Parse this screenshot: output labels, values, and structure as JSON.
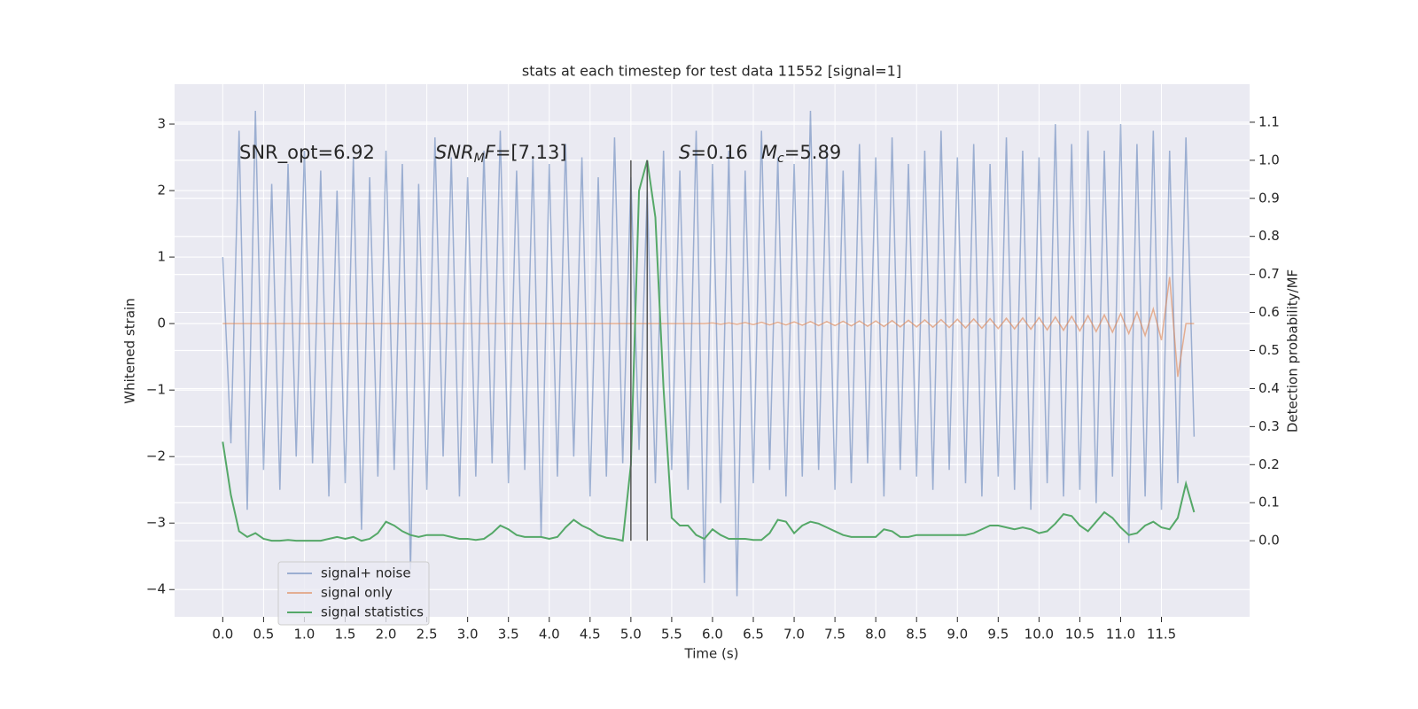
{
  "chart_data": {
    "type": "line",
    "title": "stats at each timestep for test data 11552 [signal=1]",
    "xlabel": "Time (s)",
    "ylabel": "Whitened strain",
    "y2label": "Detection probability/MF",
    "annotations": {
      "snr_opt": "SNR_opt=6.92",
      "snr_mf": [
        "SNR",
        "M",
        "F",
        "=[7.13]"
      ],
      "s": [
        "S",
        "=0.16"
      ],
      "mc": [
        "M",
        "c",
        "=5.89"
      ]
    },
    "x": [
      0,
      0.1,
      0.2,
      0.3,
      0.4,
      0.5,
      0.6,
      0.7,
      0.8,
      0.9,
      1,
      1.1,
      1.2,
      1.3,
      1.4,
      1.5,
      1.6,
      1.7,
      1.8,
      1.9,
      2,
      2.1,
      2.2,
      2.3,
      2.4,
      2.5,
      2.6,
      2.7,
      2.8,
      2.9,
      3,
      3.1,
      3.2,
      3.3,
      3.4,
      3.5,
      3.6,
      3.7,
      3.8,
      3.9,
      4,
      4.1,
      4.2,
      4.3,
      4.4,
      4.5,
      4.6,
      4.7,
      4.8,
      4.9,
      5,
      5.1,
      5.2,
      5.3,
      5.4,
      5.5,
      5.6,
      5.7,
      5.8,
      5.9,
      6,
      6.1,
      6.2,
      6.3,
      6.4,
      6.5,
      6.6,
      6.7,
      6.8,
      6.9,
      7,
      7.1,
      7.2,
      7.3,
      7.4,
      7.5,
      7.6,
      7.7,
      7.8,
      7.9,
      8,
      8.1,
      8.2,
      8.3,
      8.4,
      8.5,
      8.6,
      8.7,
      8.8,
      8.9,
      9,
      9.1,
      9.2,
      9.3,
      9.4,
      9.5,
      9.6,
      9.7,
      9.8,
      9.9,
      10,
      10.1,
      10.2,
      10.3,
      10.4,
      10.5,
      10.6,
      10.7,
      10.8,
      10.9,
      11,
      11.1,
      11.2,
      11.3,
      11.4,
      11.5,
      11.6,
      11.7,
      11.8,
      11.9
    ],
    "series": [
      {
        "name": "signal+ noise",
        "color": "#4c72b0",
        "opacity": 0.5,
        "values": [
          1.0,
          -1.8,
          2.9,
          -2.8,
          3.2,
          -2.2,
          2.1,
          -2.5,
          2.4,
          -2.0,
          2.6,
          -2.1,
          2.3,
          -2.6,
          2.0,
          -2.4,
          2.5,
          -3.1,
          2.2,
          -2.3,
          2.6,
          -2.2,
          2.4,
          -3.7,
          2.1,
          -2.5,
          2.8,
          -2.0,
          2.5,
          -2.6,
          2.2,
          -2.3,
          2.6,
          -2.1,
          2.9,
          -2.4,
          2.3,
          -2.2,
          2.5,
          -3.2,
          2.4,
          -2.3,
          2.7,
          -2.0,
          2.5,
          -2.6,
          2.2,
          -2.3,
          2.8,
          -2.1,
          2.2,
          -1.9,
          2.0,
          -2.4,
          2.6,
          -2.2,
          2.3,
          -2.5,
          2.9,
          -3.9,
          2.4,
          -2.7,
          2.6,
          -4.1,
          2.3,
          -2.4,
          2.9,
          -2.2,
          2.5,
          -2.6,
          2.4,
          -2.3,
          3.2,
          -2.2,
          2.6,
          -2.5,
          2.3,
          -2.4,
          2.7,
          -2.1,
          2.5,
          -2.6,
          2.8,
          -2.2,
          2.4,
          -2.3,
          2.6,
          -2.5,
          2.9,
          -2.2,
          2.5,
          -2.4,
          2.7,
          -2.6,
          2.4,
          -2.3,
          2.8,
          -2.5,
          2.6,
          -2.8,
          2.5,
          -2.4,
          3.0,
          -2.6,
          2.7,
          -2.5,
          2.9,
          -2.7,
          2.6,
          -2.3,
          3.0,
          -3.3,
          2.7,
          -2.6,
          2.9,
          -2.8,
          2.6,
          -2.4,
          2.8,
          -1.7
        ]
      },
      {
        "name": "signal only",
        "color": "#dd8452",
        "opacity": 0.6,
        "values": [
          0,
          0,
          0,
          0,
          0,
          0,
          0,
          0,
          0,
          0,
          0,
          0,
          0,
          0,
          0,
          0,
          0,
          0,
          0,
          0,
          0,
          0,
          0,
          0,
          0,
          0,
          0,
          0,
          0,
          0,
          0,
          0,
          0,
          0,
          0,
          0,
          0,
          0,
          0,
          0,
          0,
          0,
          0,
          0,
          0,
          0,
          0,
          0,
          0,
          0,
          0,
          0,
          0,
          0,
          0,
          0,
          0,
          0,
          0,
          0,
          0.01,
          -0.01,
          0.01,
          -0.01,
          0.015,
          -0.015,
          0.02,
          -0.02,
          0.02,
          -0.02,
          0.025,
          -0.025,
          0.03,
          -0.03,
          0.03,
          -0.03,
          0.035,
          -0.035,
          0.04,
          -0.04,
          0.04,
          -0.045,
          0.045,
          -0.05,
          0.05,
          -0.05,
          0.055,
          -0.055,
          0.06,
          -0.06,
          0.065,
          -0.065,
          0.07,
          -0.07,
          0.075,
          -0.075,
          0.08,
          -0.08,
          0.085,
          -0.085,
          0.09,
          -0.095,
          0.1,
          -0.1,
          0.11,
          -0.11,
          0.12,
          -0.12,
          0.13,
          -0.13,
          0.15,
          -0.15,
          0.17,
          -0.18,
          0.22,
          -0.25,
          0.7,
          -0.8,
          0,
          0
        ]
      },
      {
        "name": "signal statistics",
        "color": "#55a868",
        "opacity": 1,
        "axis": "y2",
        "values": [
          0.26,
          0.12,
          0.025,
          0.01,
          0.02,
          0.005,
          0,
          0,
          0.002,
          0,
          0,
          0,
          0,
          0.005,
          0.01,
          0.005,
          0.01,
          0,
          0.005,
          0.02,
          0.05,
          0.04,
          0.025,
          0.015,
          0.01,
          0.015,
          0.015,
          0.015,
          0.01,
          0.005,
          0.005,
          0.002,
          0.005,
          0.02,
          0.04,
          0.03,
          0.015,
          0.01,
          0.01,
          0.01,
          0.005,
          0.01,
          0.035,
          0.055,
          0.04,
          0.03,
          0.015,
          0.008,
          0.005,
          0,
          0.2,
          0.92,
          1.0,
          0.85,
          0.4,
          0.06,
          0.04,
          0.04,
          0.015,
          0.005,
          0.03,
          0.015,
          0.005,
          0.005,
          0.005,
          0.002,
          0.002,
          0.02,
          0.055,
          0.05,
          0.02,
          0.04,
          0.05,
          0.045,
          0.035,
          0.025,
          0.015,
          0.01,
          0.01,
          0.01,
          0.01,
          0.03,
          0.025,
          0.01,
          0.01,
          0.015,
          0.015,
          0.015,
          0.015,
          0.015,
          0.015,
          0.015,
          0.02,
          0.03,
          0.04,
          0.04,
          0.035,
          0.03,
          0.035,
          0.03,
          0.02,
          0.025,
          0.045,
          0.07,
          0.065,
          0.04,
          0.025,
          0.05,
          0.075,
          0.06,
          0.035,
          0.015,
          0.02,
          0.04,
          0.05,
          0.035,
          0.03,
          0.06,
          0.15,
          0.075
        ]
      }
    ],
    "vlines": {
      "x": [
        5.0,
        5.2
      ],
      "ymin": 0,
      "ymax": 1,
      "axis": "y2",
      "color": "#555555"
    },
    "xlim": [
      -0.59,
      12.58
    ],
    "ylim": [
      -4.41,
      3.6
    ],
    "y2lim": [
      -0.2,
      1.2
    ],
    "xticks": [
      {
        "value": 0,
        "label": "0.0"
      },
      0.5,
      {
        "value": 1,
        "label": "1.0"
      },
      1.5,
      {
        "value": 2,
        "label": "2.0"
      },
      2.5,
      {
        "value": 3,
        "label": "3.0"
      },
      3.5,
      {
        "value": 4,
        "label": "4.0"
      },
      4.5,
      {
        "value": 5,
        "label": "5.0"
      },
      5.5,
      {
        "value": 6,
        "label": "6.0"
      },
      6.5,
      {
        "value": 7,
        "label": "7.0"
      },
      7.5,
      {
        "value": 8,
        "label": "8.0"
      },
      8.5,
      {
        "value": 9,
        "label": "9.0"
      },
      9.5,
      {
        "value": 10,
        "label": "10.0"
      },
      10.5,
      {
        "value": 11,
        "label": "11.0"
      },
      11.5
    ],
    "yticks": [
      {
        "value": -4,
        "label": "−4"
      },
      {
        "value": -3,
        "label": "−3"
      },
      {
        "value": -2,
        "label": "−2"
      },
      {
        "value": -1,
        "label": "−1"
      },
      0,
      1,
      2,
      3
    ],
    "y2ticks": [
      {
        "value": 0,
        "label": "0.0"
      },
      0.1,
      0.2,
      0.3,
      0.4,
      0.5,
      0.6,
      0.7,
      0.8,
      0.9,
      {
        "value": 1,
        "label": "1.0"
      },
      1.1
    ],
    "grid": true,
    "legend": "lower left"
  }
}
